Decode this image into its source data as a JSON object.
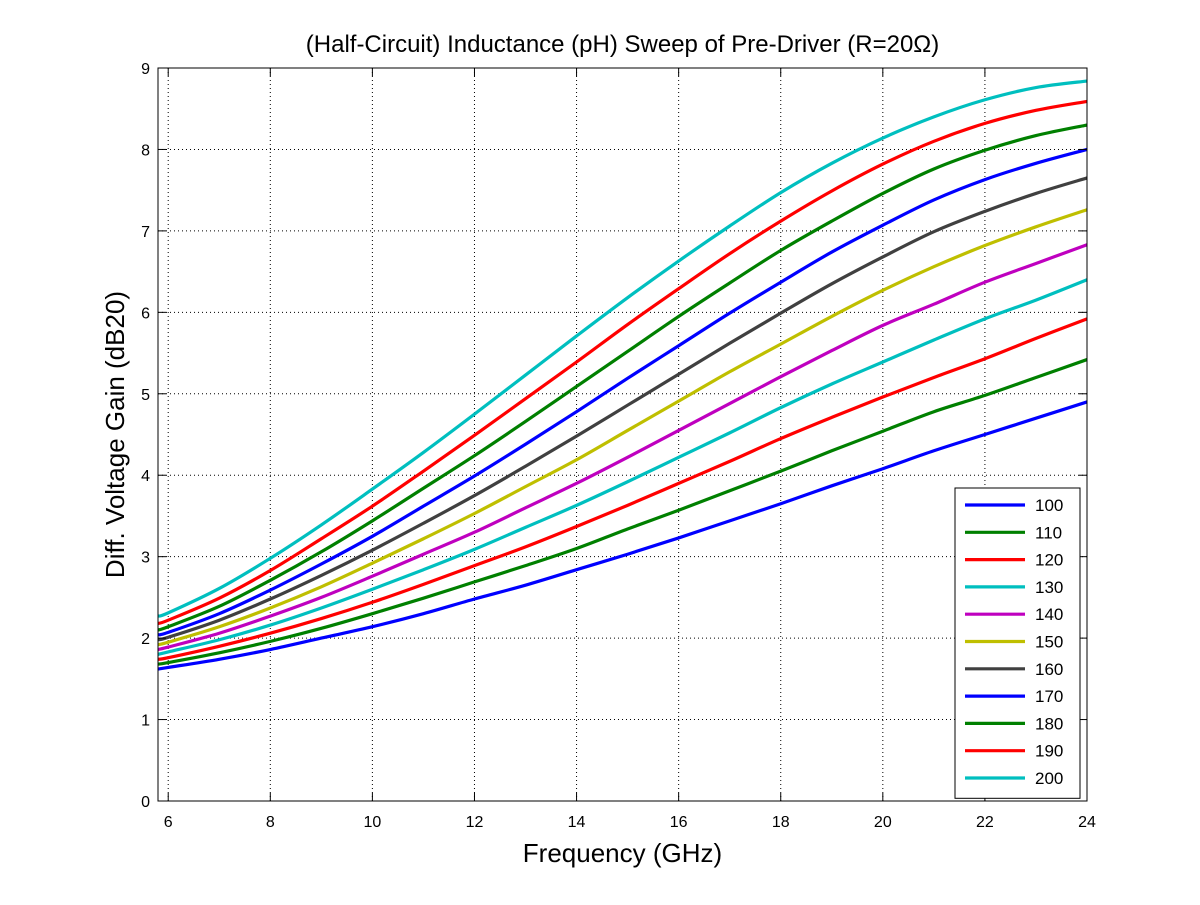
{
  "chart_data": {
    "type": "line",
    "title": "(Half-Circuit) Inductance (pH) Sweep of Pre-Driver (R=20Ω)",
    "xlabel": "Frequency (GHz)",
    "ylabel": "Diff. Voltage Gain (dB20)",
    "xlim": [
      5.8,
      24
    ],
    "ylim": [
      0,
      9
    ],
    "xticks": [
      6,
      8,
      10,
      12,
      14,
      16,
      18,
      20,
      22,
      24
    ],
    "yticks": [
      0,
      1,
      2,
      3,
      4,
      5,
      6,
      7,
      8,
      9
    ],
    "grid": true,
    "legend_position": "bottom-right",
    "x": [
      5.8,
      6,
      7,
      8,
      9,
      10,
      11,
      12,
      13,
      14,
      15,
      16,
      17,
      18,
      19,
      20,
      21,
      22,
      23,
      24
    ],
    "series": [
      {
        "name": "100",
        "color": "#0000ff",
        "values": [
          1.62,
          1.64,
          1.74,
          1.86,
          2.0,
          2.14,
          2.3,
          2.48,
          2.65,
          2.84,
          3.03,
          3.23,
          3.44,
          3.65,
          3.87,
          4.08,
          4.3,
          4.5,
          4.7,
          4.9
        ]
      },
      {
        "name": "110",
        "color": "#008000",
        "values": [
          1.68,
          1.7,
          1.82,
          1.96,
          2.12,
          2.3,
          2.49,
          2.69,
          2.89,
          3.1,
          3.34,
          3.57,
          3.81,
          4.05,
          4.3,
          4.54,
          4.78,
          4.98,
          5.2,
          5.42
        ]
      },
      {
        "name": "120",
        "color": "#ff0000",
        "values": [
          1.74,
          1.76,
          1.9,
          2.06,
          2.24,
          2.44,
          2.66,
          2.89,
          3.12,
          3.37,
          3.63,
          3.9,
          4.17,
          4.45,
          4.71,
          4.96,
          5.2,
          5.43,
          5.68,
          5.92
        ]
      },
      {
        "name": "130",
        "color": "#00bfbf",
        "values": [
          1.8,
          1.83,
          1.98,
          2.16,
          2.37,
          2.6,
          2.84,
          3.09,
          3.36,
          3.63,
          3.92,
          4.22,
          4.52,
          4.83,
          5.12,
          5.39,
          5.66,
          5.92,
          6.15,
          6.4
        ]
      },
      {
        "name": "140",
        "color": "#bf00bf",
        "values": [
          1.86,
          1.89,
          2.06,
          2.27,
          2.5,
          2.76,
          3.03,
          3.3,
          3.6,
          3.9,
          4.22,
          4.55,
          4.88,
          5.21,
          5.53,
          5.84,
          6.1,
          6.37,
          6.6,
          6.83
        ]
      },
      {
        "name": "150",
        "color": "#bfbf00",
        "values": [
          1.92,
          1.95,
          2.14,
          2.37,
          2.63,
          2.92,
          3.22,
          3.53,
          3.86,
          4.19,
          4.55,
          4.91,
          5.27,
          5.61,
          5.95,
          6.27,
          6.56,
          6.82,
          7.05,
          7.26
        ]
      },
      {
        "name": "160",
        "color": "#404040",
        "values": [
          1.98,
          2.01,
          2.22,
          2.48,
          2.77,
          3.08,
          3.41,
          3.75,
          4.11,
          4.48,
          4.86,
          5.24,
          5.62,
          5.99,
          6.35,
          6.68,
          6.99,
          7.24,
          7.46,
          7.65
        ]
      },
      {
        "name": "170",
        "color": "#0000ff",
        "values": [
          2.04,
          2.07,
          2.3,
          2.59,
          2.91,
          3.25,
          3.62,
          3.99,
          4.38,
          4.78,
          5.19,
          5.59,
          5.99,
          6.37,
          6.74,
          7.07,
          7.38,
          7.63,
          7.83,
          8.0
        ]
      },
      {
        "name": "180",
        "color": "#008000",
        "values": [
          2.1,
          2.14,
          2.39,
          2.71,
          3.06,
          3.44,
          3.84,
          4.24,
          4.66,
          5.09,
          5.52,
          5.95,
          6.36,
          6.76,
          7.12,
          7.46,
          7.76,
          7.99,
          8.17,
          8.3
        ]
      },
      {
        "name": "190",
        "color": "#ff0000",
        "values": [
          2.18,
          2.22,
          2.49,
          2.83,
          3.22,
          3.62,
          4.05,
          4.49,
          4.94,
          5.39,
          5.85,
          6.29,
          6.72,
          7.12,
          7.49,
          7.82,
          8.1,
          8.32,
          8.48,
          8.59
        ]
      },
      {
        "name": "200",
        "color": "#00bfbf",
        "values": [
          2.27,
          2.31,
          2.61,
          2.98,
          3.39,
          3.83,
          4.28,
          4.75,
          5.23,
          5.71,
          6.18,
          6.63,
          7.06,
          7.47,
          7.83,
          8.14,
          8.4,
          8.61,
          8.76,
          8.84
        ]
      }
    ]
  }
}
